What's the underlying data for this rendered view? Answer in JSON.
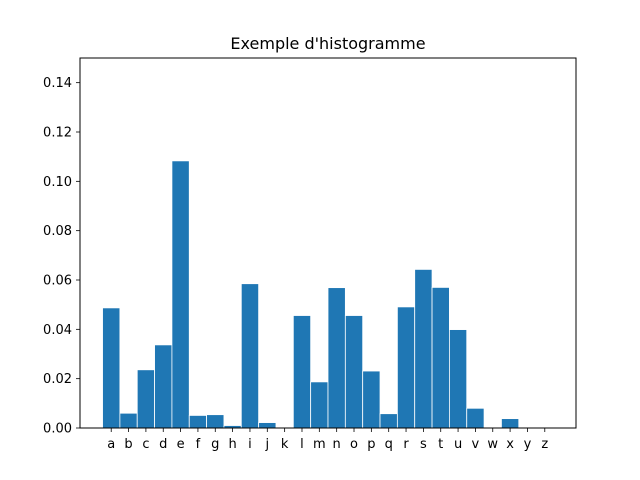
{
  "chart_data": {
    "type": "bar",
    "title": "Exemple d'histogramme",
    "xlabel": "",
    "ylabel": "",
    "categories": [
      "a",
      "b",
      "c",
      "d",
      "e",
      "f",
      "g",
      "h",
      "i",
      "j",
      "k",
      "l",
      "m",
      "n",
      "o",
      "p",
      "q",
      "r",
      "s",
      "t",
      "u",
      "v",
      "w",
      "x",
      "y",
      "z"
    ],
    "values": [
      0.0487,
      0.006,
      0.0236,
      0.0337,
      0.1083,
      0.0051,
      0.0054,
      0.001,
      0.0585,
      0.0022,
      0.0,
      0.0456,
      0.0187,
      0.0569,
      0.0456,
      0.0231,
      0.0058,
      0.0491,
      0.0643,
      0.057,
      0.0399,
      0.008,
      0.0,
      0.0038,
      0.0,
      0.0
    ],
    "ylim": [
      0,
      0.15
    ],
    "yticks": [
      "0.00",
      "0.02",
      "0.04",
      "0.06",
      "0.08",
      "0.10",
      "0.12",
      "0.14"
    ],
    "bar_color": "#1f77b4",
    "bar_edge_color": "#ffffff",
    "grid": false
  }
}
